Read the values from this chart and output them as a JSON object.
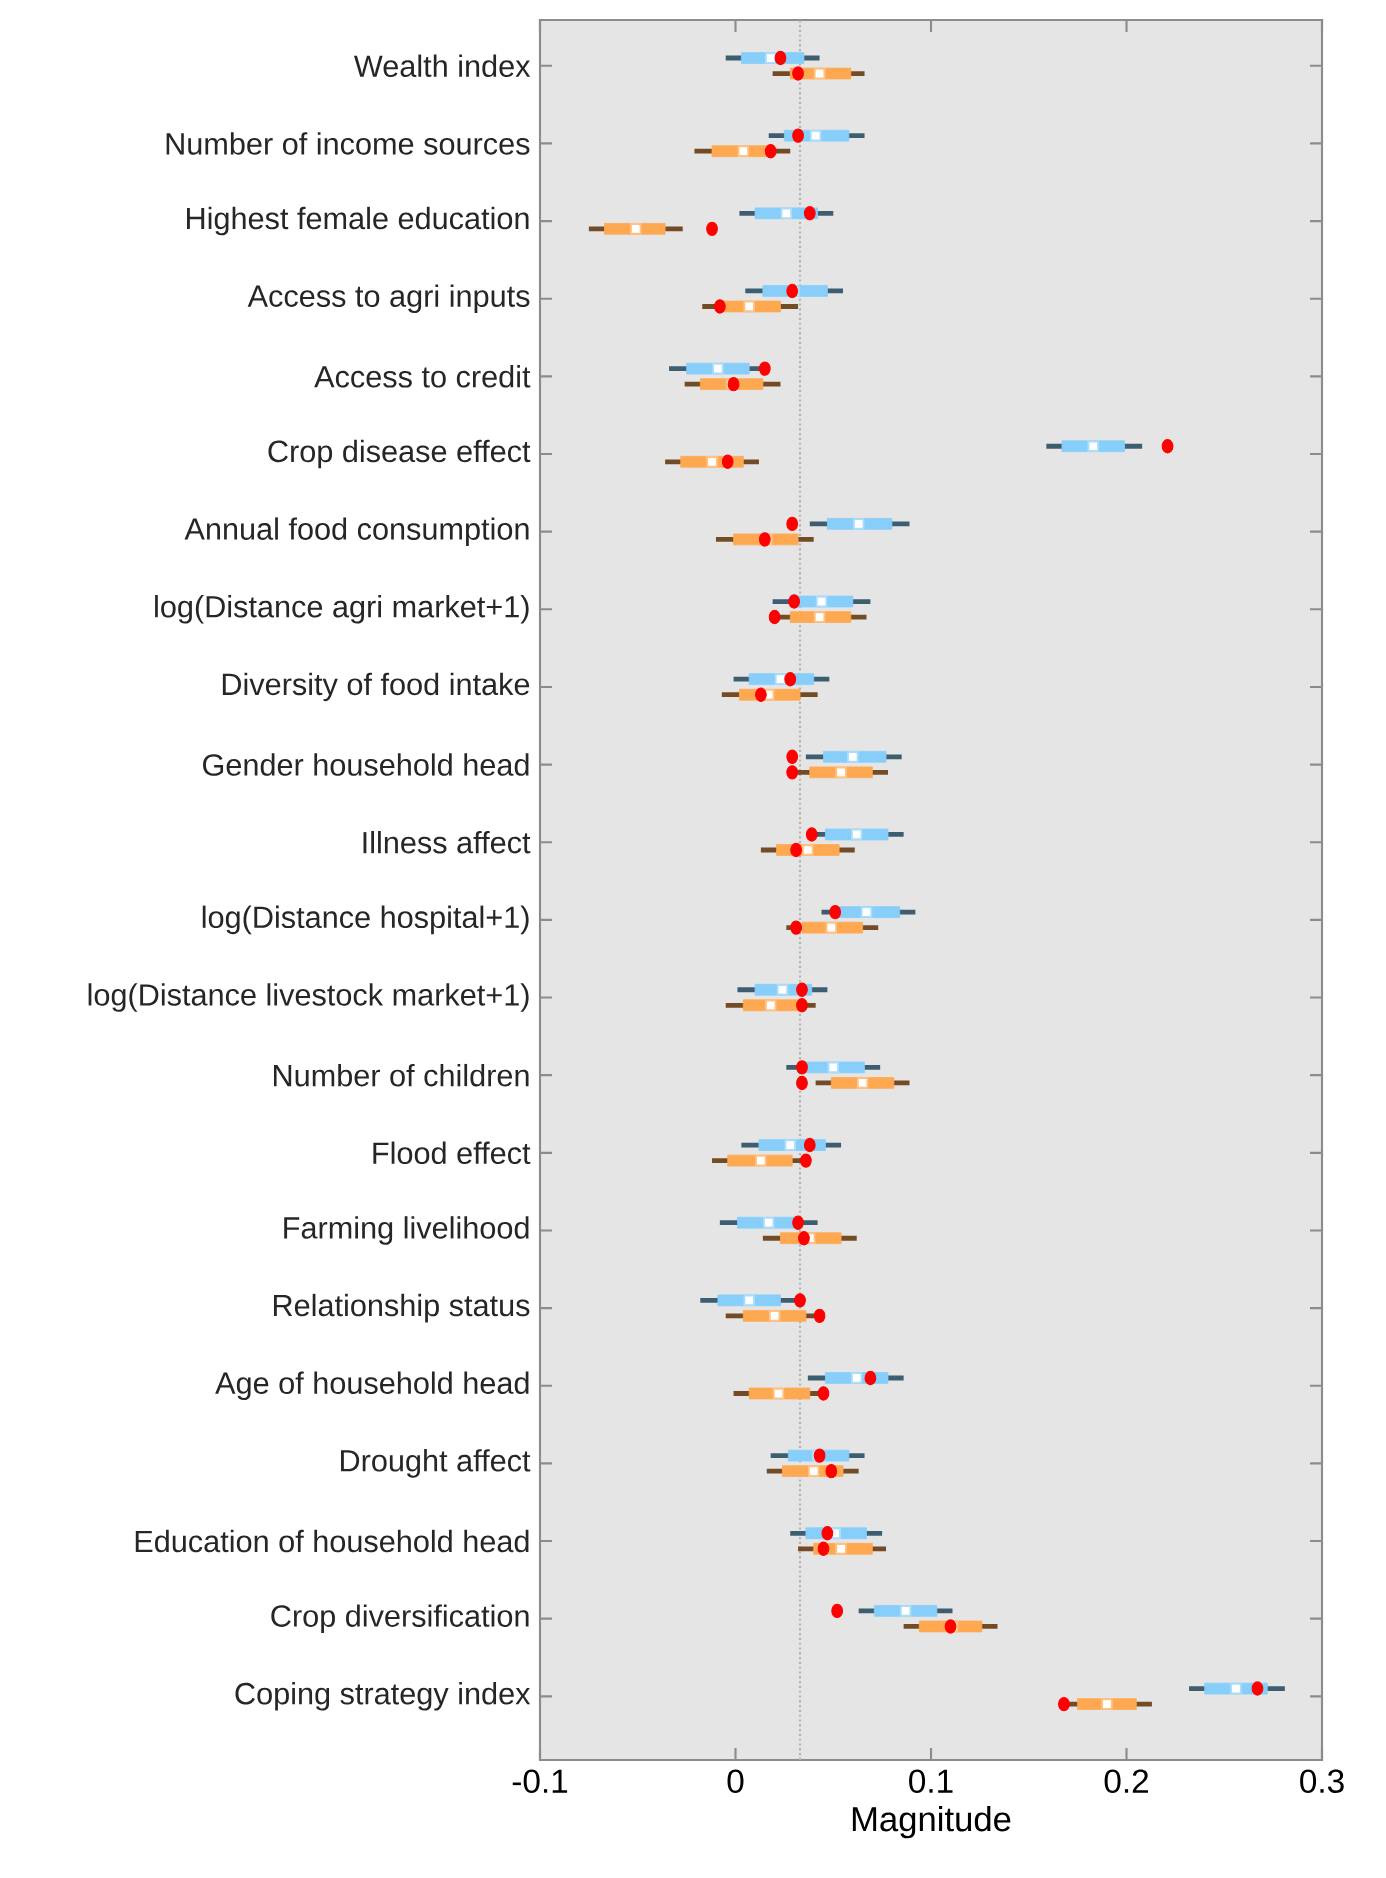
{
  "chart_data": {
    "type": "box",
    "orientation": "horizontal",
    "xlabel": "Magnitude",
    "categories": [
      "Wealth index",
      "Number of income sources",
      "Highest female education",
      "Access to agri inputs",
      "Access to credit",
      "Crop disease effect",
      "Annual food consumption",
      "log(Distance agri market+1)",
      "Diversity of food intake",
      "Gender household head",
      "Illness affect",
      "log(Distance hospital+1)",
      "log(Distance livestock market+1)",
      "Number of children",
      "Flood effect",
      "Farming livelihood",
      "Relationship status",
      "Age of household head",
      "Drought affect",
      "Education of household head",
      "Crop diversification",
      "Coping strategy index"
    ],
    "xlim": [
      -0.1,
      0.3
    ],
    "xticks": [
      -0.1,
      0,
      0.1,
      0.2,
      0.3
    ],
    "ref_lines": [
      {
        "axis": "x",
        "value": 0.033,
        "line_style": "dotted",
        "color": "#b4b4b4"
      }
    ],
    "series": [
      {
        "color": "#87cefa",
        "boxes": [
          {
            "low": -0.005,
            "q1": 0.003,
            "median": 0.018,
            "q3": 0.035,
            "high": 0.043,
            "mean": 0.023
          },
          {
            "low": 0.017,
            "q1": 0.025,
            "median": 0.041,
            "q3": 0.058,
            "high": 0.066,
            "mean": 0.032
          },
          {
            "low": 0.002,
            "q1": 0.01,
            "median": 0.026,
            "q3": 0.042,
            "high": 0.05,
            "mean": 0.038
          },
          {
            "low": 0.005,
            "q1": 0.014,
            "median": 0.03,
            "q3": 0.047,
            "high": 0.055,
            "mean": 0.029
          },
          {
            "low": -0.034,
            "q1": -0.025,
            "median": -0.009,
            "q3": 0.007,
            "high": 0.015,
            "mean": 0.015
          },
          {
            "low": 0.159,
            "q1": 0.167,
            "median": 0.183,
            "q3": 0.199,
            "high": 0.208,
            "mean": 0.221
          },
          {
            "low": 0.038,
            "q1": 0.047,
            "median": 0.063,
            "q3": 0.08,
            "high": 0.089,
            "mean": 0.029
          },
          {
            "low": 0.019,
            "q1": 0.028,
            "median": 0.044,
            "q3": 0.06,
            "high": 0.069,
            "mean": 0.03
          },
          {
            "low": -0.001,
            "q1": 0.007,
            "median": 0.023,
            "q3": 0.04,
            "high": 0.048,
            "mean": 0.028
          },
          {
            "low": 0.036,
            "q1": 0.045,
            "median": 0.06,
            "q3": 0.077,
            "high": 0.085,
            "mean": 0.029
          },
          {
            "low": 0.037,
            "q1": 0.046,
            "median": 0.062,
            "q3": 0.078,
            "high": 0.086,
            "mean": 0.039
          },
          {
            "low": 0.044,
            "q1": 0.052,
            "median": 0.067,
            "q3": 0.084,
            "high": 0.092,
            "mean": 0.051
          },
          {
            "low": 0.001,
            "q1": 0.01,
            "median": 0.024,
            "q3": 0.039,
            "high": 0.047,
            "mean": 0.034
          },
          {
            "low": 0.026,
            "q1": 0.034,
            "median": 0.05,
            "q3": 0.066,
            "high": 0.074,
            "mean": 0.034
          },
          {
            "low": 0.003,
            "q1": 0.012,
            "median": 0.028,
            "q3": 0.046,
            "high": 0.054,
            "mean": 0.038
          },
          {
            "low": -0.008,
            "q1": 0.001,
            "median": 0.017,
            "q3": 0.032,
            "high": 0.042,
            "mean": 0.032
          },
          {
            "low": -0.018,
            "q1": -0.009,
            "median": 0.007,
            "q3": 0.023,
            "high": 0.034,
            "mean": 0.033
          },
          {
            "low": 0.037,
            "q1": 0.046,
            "median": 0.062,
            "q3": 0.078,
            "high": 0.086,
            "mean": 0.069
          },
          {
            "low": 0.018,
            "q1": 0.027,
            "median": 0.042,
            "q3": 0.058,
            "high": 0.066,
            "mean": 0.043
          },
          {
            "low": 0.028,
            "q1": 0.036,
            "median": 0.051,
            "q3": 0.067,
            "high": 0.075,
            "mean": 0.047
          },
          {
            "low": 0.063,
            "q1": 0.071,
            "median": 0.087,
            "q3": 0.103,
            "high": 0.111,
            "mean": 0.052
          },
          {
            "low": 0.232,
            "q1": 0.24,
            "median": 0.256,
            "q3": 0.272,
            "high": 0.281,
            "mean": 0.267
          }
        ]
      },
      {
        "color": "#ffa852",
        "boxes": [
          {
            "low": 0.019,
            "q1": 0.028,
            "median": 0.043,
            "q3": 0.059,
            "high": 0.066,
            "mean": 0.032
          },
          {
            "low": -0.021,
            "q1": -0.012,
            "median": 0.004,
            "q3": 0.019,
            "high": 0.028,
            "mean": 0.018
          },
          {
            "low": -0.075,
            "q1": -0.067,
            "median": -0.051,
            "q3": -0.036,
            "high": -0.027,
            "mean": -0.012
          },
          {
            "low": -0.017,
            "q1": -0.009,
            "median": 0.007,
            "q3": 0.023,
            "high": 0.032,
            "mean": -0.008
          },
          {
            "low": -0.026,
            "q1": -0.018,
            "median": -0.002,
            "q3": 0.014,
            "high": 0.023,
            "mean": -0.001
          },
          {
            "low": -0.036,
            "q1": -0.028,
            "median": -0.012,
            "q3": 0.004,
            "high": 0.012,
            "mean": -0.004
          },
          {
            "low": -0.01,
            "q1": -0.001,
            "median": 0.016,
            "q3": 0.032,
            "high": 0.04,
            "mean": 0.015
          },
          {
            "low": 0.02,
            "q1": 0.028,
            "median": 0.043,
            "q3": 0.059,
            "high": 0.067,
            "mean": 0.02
          },
          {
            "low": -0.007,
            "q1": 0.002,
            "median": 0.017,
            "q3": 0.033,
            "high": 0.042,
            "mean": 0.013
          },
          {
            "low": 0.029,
            "q1": 0.038,
            "median": 0.054,
            "q3": 0.07,
            "high": 0.078,
            "mean": 0.029
          },
          {
            "low": 0.013,
            "q1": 0.021,
            "median": 0.037,
            "q3": 0.053,
            "high": 0.061,
            "mean": 0.031
          },
          {
            "low": 0.026,
            "q1": 0.034,
            "median": 0.049,
            "q3": 0.065,
            "high": 0.073,
            "mean": 0.031
          },
          {
            "low": -0.005,
            "q1": 0.004,
            "median": 0.018,
            "q3": 0.033,
            "high": 0.041,
            "mean": 0.034
          },
          {
            "low": 0.041,
            "q1": 0.049,
            "median": 0.065,
            "q3": 0.081,
            "high": 0.089,
            "mean": 0.034
          },
          {
            "low": -0.012,
            "q1": -0.004,
            "median": 0.013,
            "q3": 0.029,
            "high": 0.038,
            "mean": 0.036
          },
          {
            "low": 0.014,
            "q1": 0.023,
            "median": 0.038,
            "q3": 0.054,
            "high": 0.062,
            "mean": 0.035
          },
          {
            "low": -0.005,
            "q1": 0.004,
            "median": 0.02,
            "q3": 0.036,
            "high": 0.043,
            "mean": 0.043
          },
          {
            "low": -0.001,
            "q1": 0.007,
            "median": 0.022,
            "q3": 0.038,
            "high": 0.045,
            "mean": 0.045
          },
          {
            "low": 0.016,
            "q1": 0.024,
            "median": 0.04,
            "q3": 0.055,
            "high": 0.063,
            "mean": 0.049
          },
          {
            "low": 0.032,
            "q1": 0.04,
            "median": 0.054,
            "q3": 0.07,
            "high": 0.077,
            "mean": 0.045
          },
          {
            "low": 0.086,
            "q1": 0.094,
            "median": 0.111,
            "q3": 0.126,
            "high": 0.134,
            "mean": 0.11
          },
          {
            "low": 0.167,
            "q1": 0.175,
            "median": 0.19,
            "q3": 0.205,
            "high": 0.213,
            "mean": 0.168
          }
        ]
      }
    ]
  }
}
